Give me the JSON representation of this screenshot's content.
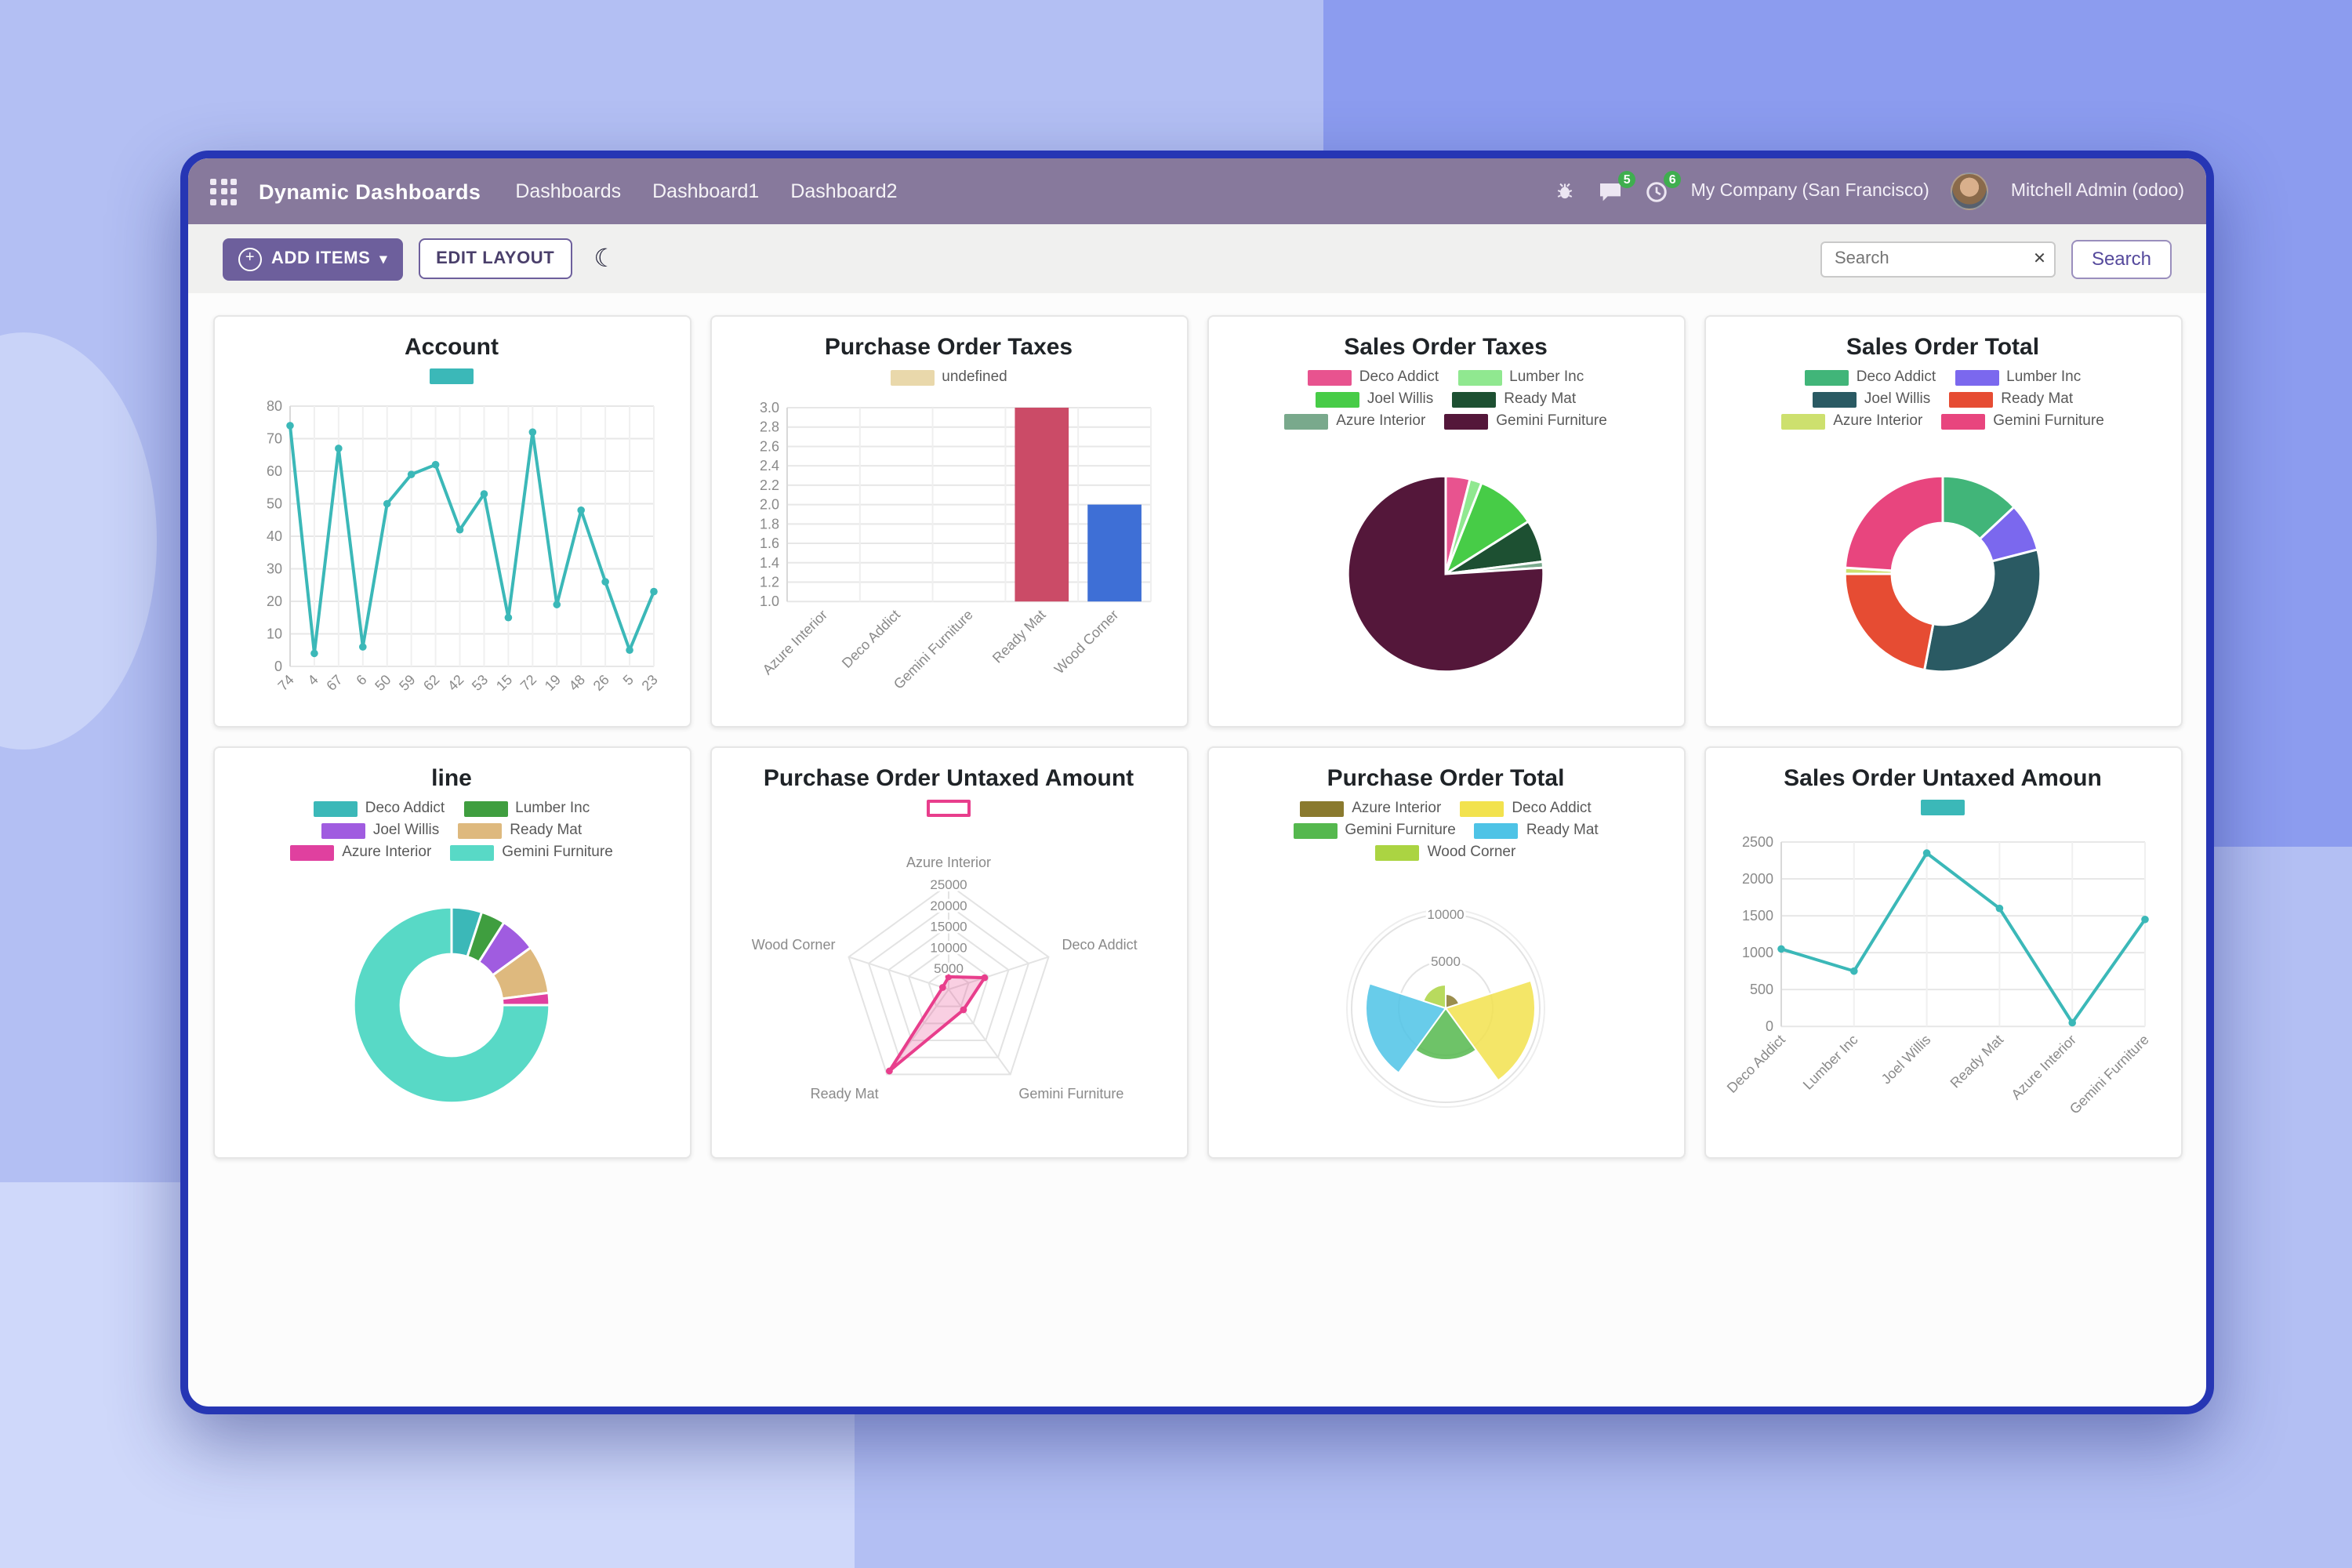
{
  "navbar": {
    "brand": "Dynamic Dashboards",
    "menu": [
      "Dashboards",
      "Dashboard1",
      "Dashboard2"
    ],
    "messages_badge": "5",
    "activities_badge": "6",
    "company": "My Company (San Francisco)",
    "user": "Mitchell Admin (odoo)"
  },
  "toolbar": {
    "add_items_label": "ADD ITEMS",
    "edit_layout_label": "EDIT LAYOUT",
    "search_placeholder": "Search",
    "search_button_label": "Search"
  },
  "icons": {
    "plus": "+",
    "caret": "▾",
    "moon": "☾",
    "clear": "✕"
  },
  "colors": {
    "accent": "#6d5f9c",
    "navbar": "#87799c",
    "teal": "#3bb8b8",
    "badge_green": "#3fae4f"
  },
  "chart_data": [
    {
      "type": "line",
      "title": "Account",
      "legend": [
        {
          "label": "",
          "color": "#3bb8b8"
        }
      ],
      "categories": [
        "74",
        "4",
        "67",
        "6",
        "50",
        "59",
        "62",
        "42",
        "53",
        "15",
        "72",
        "19",
        "48",
        "26",
        "5",
        "23"
      ],
      "values": [
        74,
        4,
        67,
        6,
        50,
        59,
        62,
        42,
        53,
        15,
        72,
        19,
        48,
        26,
        5,
        23
      ],
      "ylim": [
        0,
        80
      ],
      "yticks": [
        0,
        10,
        20,
        30,
        40,
        50,
        60,
        70,
        80
      ],
      "tick_decimals": 0,
      "color": "#3bb8b8",
      "grid": true,
      "legend_position": "top"
    },
    {
      "type": "bar",
      "title": "Purchase Order Taxes",
      "legend": [
        {
          "label": "undefined",
          "color": "#e9d8ab"
        }
      ],
      "categories": [
        "Azure Interior",
        "Deco Addict",
        "Gemini Furniture",
        "Ready Mat",
        "Wood Corner"
      ],
      "values": [
        0,
        0,
        0,
        3,
        2
      ],
      "bar_colors": [
        "#e9d8ab",
        "#e9d8ab",
        "#e9d8ab",
        "#cb4b67",
        "#3e6fd6"
      ],
      "ylim": [
        1.0,
        3.0
      ],
      "yticks": [
        1.0,
        1.2,
        1.4,
        1.6,
        1.8,
        2.0,
        2.2,
        2.4,
        2.6,
        2.8,
        3.0
      ],
      "tick_decimals": 1,
      "grid": true,
      "legend_position": "top"
    },
    {
      "type": "pie",
      "title": "Sales Order Taxes",
      "labels": [
        "Deco Addict",
        "Lumber Inc",
        "Joel Willis",
        "Ready Mat",
        "Azure Interior",
        "Gemini Furniture"
      ],
      "values": [
        4,
        2,
        10,
        7,
        1,
        76
      ],
      "colors": [
        "#e8538f",
        "#90e890",
        "#47cc47",
        "#1d5032",
        "#79a98c",
        "#54173a"
      ],
      "legend_position": "top"
    },
    {
      "type": "doughnut",
      "title": "Sales Order Total",
      "labels": [
        "Deco Addict",
        "Lumber Inc",
        "Joel Willis",
        "Ready Mat",
        "Azure Interior",
        "Gemini Furniture"
      ],
      "values": [
        13,
        8,
        32,
        22,
        1,
        24
      ],
      "colors": [
        "#41b579",
        "#7b68ee",
        "#2a5a63",
        "#e64c33",
        "#cde06e",
        "#e8457e"
      ],
      "legend_position": "top"
    },
    {
      "type": "doughnut",
      "title": "line",
      "labels": [
        "Deco Addict",
        "Lumber Inc",
        "Joel Willis",
        "Ready Mat",
        "Azure Interior",
        "Gemini Furniture"
      ],
      "values": [
        5,
        4,
        6,
        8,
        2,
        75
      ],
      "colors": [
        "#3bb8b8",
        "#3f9e3f",
        "#a05ce0",
        "#deb97e",
        "#e0409f",
        "#58d9c6"
      ],
      "legend_position": "top"
    },
    {
      "type": "radar",
      "title": "Purchase Order Untaxed Amount",
      "legend": [
        {
          "label": "",
          "color": "#ffffff",
          "border": "#e83e8c"
        }
      ],
      "labels": [
        "Azure Interior",
        "Deco Addict",
        "Gemini Furniture",
        "Ready Mat",
        "Wood Corner"
      ],
      "values": [
        3000,
        9000,
        6000,
        24000,
        1500
      ],
      "rings": [
        5000,
        10000,
        15000,
        20000,
        25000
      ],
      "max": 25000,
      "color": "#e83e8c",
      "fill": "rgba(232,62,140,0.25)",
      "legend_position": "top"
    },
    {
      "type": "polarArea",
      "title": "Purchase Order Total",
      "labels": [
        "Azure Interior",
        "Deco Addict",
        "Gemini Furniture",
        "Ready Mat",
        "Wood Corner"
      ],
      "values": [
        1500,
        9500,
        5500,
        8500,
        2500
      ],
      "colors": [
        "#8a7a2e",
        "#f2e24e",
        "#55b84e",
        "#4ec3e6",
        "#abd442"
      ],
      "rings": [
        5000,
        10000
      ],
      "max": 10500,
      "legend_position": "top"
    },
    {
      "type": "line",
      "title": "Sales Order Untaxed Amoun",
      "legend": [
        {
          "label": "",
          "color": "#3bb8b8"
        }
      ],
      "categories": [
        "Deco Addict",
        "Lumber Inc",
        "Joel Willis",
        "Ready Mat",
        "Azure Interior",
        "Gemini Furniture"
      ],
      "values": [
        1050,
        750,
        2350,
        1600,
        50,
        1450
      ],
      "ylim": [
        0,
        2500
      ],
      "yticks": [
        0,
        500,
        1000,
        1500,
        2000,
        2500
      ],
      "tick_decimals": 0,
      "color": "#3bb8b8",
      "grid": true,
      "legend_position": "top"
    }
  ]
}
